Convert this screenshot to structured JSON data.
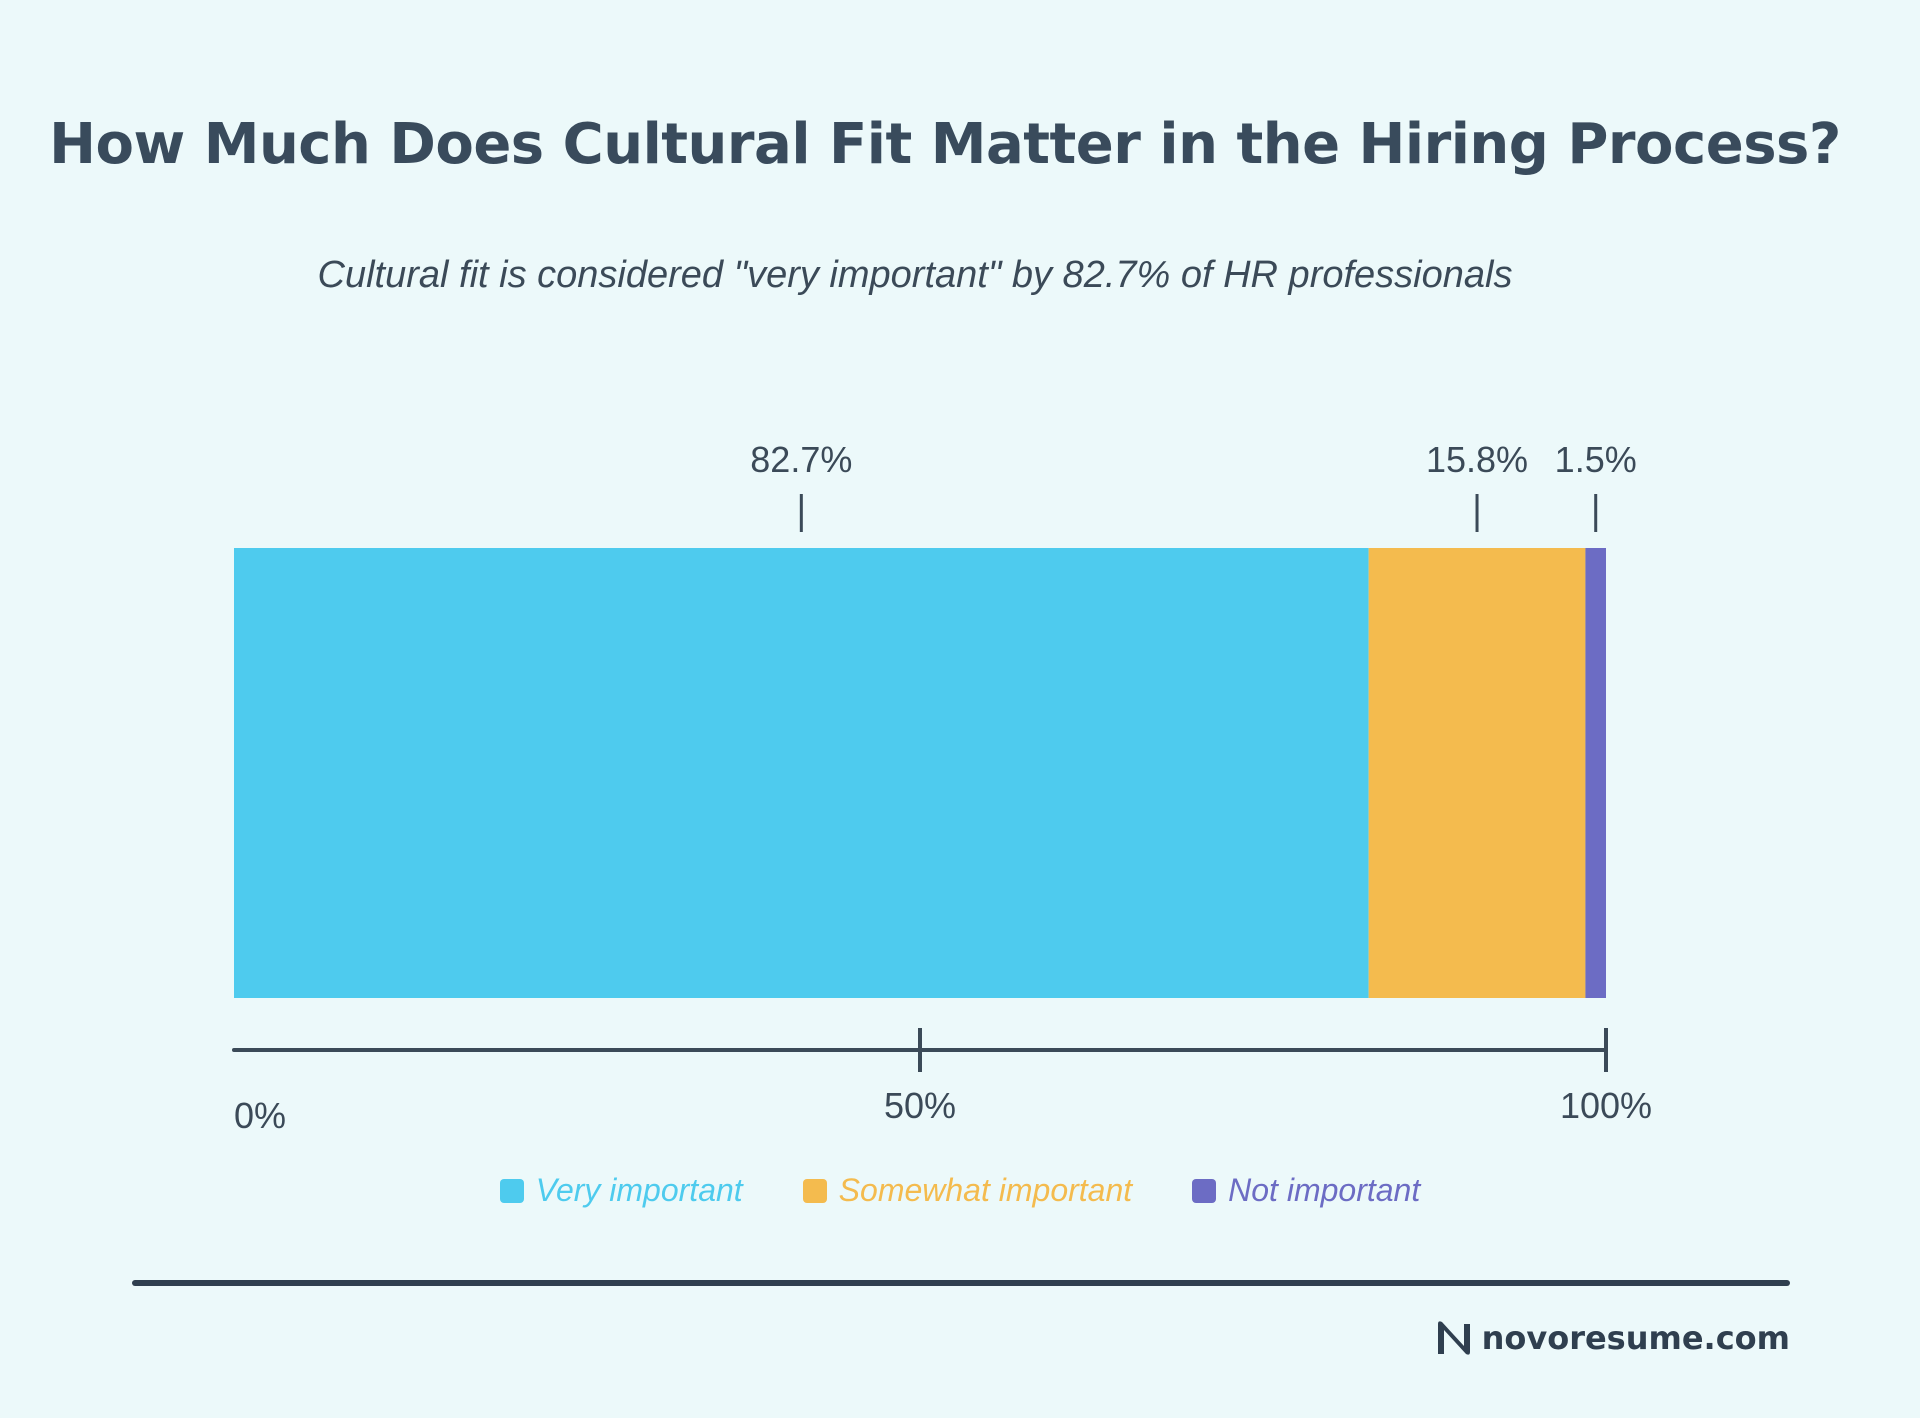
{
  "title": "How Much Does Cultural Fit Matter in the Hiring Process?",
  "subtitle": "Cultural fit is considered \"very important\" by 82.7% of HR professionals",
  "brand": {
    "name": "novoresume.com",
    "logo_icon": "novoresume-n-logo-icon"
  },
  "colors": {
    "background": "#ecf9fa",
    "very": "#4ecbee",
    "somewhat": "#f4bb4e",
    "not": "#6c6cc4",
    "text": "#3b4a58"
  },
  "chart_data": {
    "type": "bar",
    "orientation": "horizontal-stacked",
    "title": "How Much Does Cultural Fit Matter in the Hiring Process?",
    "subtitle": "Cultural fit is considered \"very important\" by 82.7% of HR professionals",
    "series": [
      {
        "name": "Very important",
        "value": 82.7,
        "label": "82.7%",
        "color": "#4ecbee"
      },
      {
        "name": "Somewhat important",
        "value": 15.8,
        "label": "15.8%",
        "color": "#f4bb4e"
      },
      {
        "name": "Not important",
        "value": 1.5,
        "label": "1.5%",
        "color": "#6c6cc4"
      }
    ],
    "axis": {
      "range": [
        0,
        100
      ],
      "ticks": [
        {
          "value": 0,
          "label": "0%"
        },
        {
          "value": 50,
          "label": "50%"
        },
        {
          "value": 100,
          "label": "100%"
        }
      ]
    },
    "legend_position": "bottom-center"
  }
}
